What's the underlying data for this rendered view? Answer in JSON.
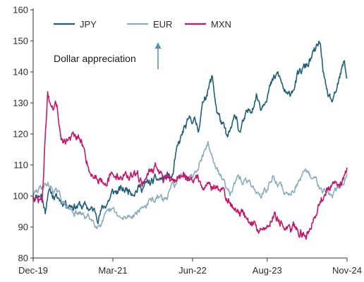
{
  "chart_data": {
    "type": "line",
    "title": "",
    "xlabel": "",
    "ylabel": "",
    "ylim": [
      80,
      160
    ],
    "yticks": [
      80,
      90,
      100,
      110,
      120,
      130,
      140,
      150,
      160
    ],
    "xticks": [
      {
        "label": "Dec-19",
        "date": "2019-12-31"
      },
      {
        "label": "Mar-21",
        "date": "2021-03-31"
      },
      {
        "label": "Jun-22",
        "date": "2022-06-30"
      },
      {
        "label": "Aug-23",
        "date": "2023-08-31"
      },
      {
        "label": "Nov-24",
        "date": "2024-11-30"
      }
    ],
    "grid": false,
    "legend": {
      "placement": "top-left"
    },
    "annotation": {
      "text": "Dollar appreciation",
      "arrow": "up"
    },
    "series": [
      {
        "name": "JPY",
        "color": "#1f5f7a",
        "points": [
          [
            "2019-12-31",
            100
          ],
          [
            "2020-02-15",
            101
          ],
          [
            "2020-03-09",
            95
          ],
          [
            "2020-03-24",
            102
          ],
          [
            "2020-05-15",
            99
          ],
          [
            "2020-07-15",
            98
          ],
          [
            "2020-09-15",
            97
          ],
          [
            "2020-11-15",
            96
          ],
          [
            "2021-01-05",
            94
          ],
          [
            "2021-02-15",
            97
          ],
          [
            "2021-03-31",
            101
          ],
          [
            "2021-06-15",
            102
          ],
          [
            "2021-09-15",
            103
          ],
          [
            "2021-12-15",
            105
          ],
          [
            "2022-01-31",
            106
          ],
          [
            "2022-03-07",
            106
          ],
          [
            "2022-03-28",
            113
          ],
          [
            "2022-05-10",
            121
          ],
          [
            "2022-06-30",
            125
          ],
          [
            "2022-08-01",
            122
          ],
          [
            "2022-09-07",
            132
          ],
          [
            "2022-10-21",
            138
          ],
          [
            "2022-11-15",
            128
          ],
          [
            "2023-01-16",
            118
          ],
          [
            "2023-03-08",
            126
          ],
          [
            "2023-03-24",
            121
          ],
          [
            "2023-05-30",
            128
          ],
          [
            "2023-06-30",
            133
          ],
          [
            "2023-07-28",
            129
          ],
          [
            "2023-08-31",
            134
          ],
          [
            "2023-11-01",
            139
          ],
          [
            "2023-12-28",
            131
          ],
          [
            "2024-02-15",
            138
          ],
          [
            "2024-04-26",
            143
          ],
          [
            "2024-06-28",
            149
          ],
          [
            "2024-08-05",
            132
          ],
          [
            "2024-09-16",
            130
          ],
          [
            "2024-10-31",
            140
          ],
          [
            "2024-11-15",
            143
          ],
          [
            "2024-11-29",
            138
          ]
        ]
      },
      {
        "name": "EUR",
        "color": "#8aadbd",
        "points": [
          [
            "2019-12-31",
            100
          ],
          [
            "2020-02-20",
            103
          ],
          [
            "2020-03-19",
            104
          ],
          [
            "2020-05-15",
            101
          ],
          [
            "2020-07-15",
            96
          ],
          [
            "2020-09-15",
            94
          ],
          [
            "2020-11-15",
            93
          ],
          [
            "2021-01-05",
            91
          ],
          [
            "2021-03-31",
            95
          ],
          [
            "2021-05-25",
            92
          ],
          [
            "2021-08-15",
            95
          ],
          [
            "2021-11-24",
            99
          ],
          [
            "2022-01-31",
            99
          ],
          [
            "2022-03-07",
            103
          ],
          [
            "2022-05-12",
            107
          ],
          [
            "2022-06-30",
            107
          ],
          [
            "2022-09-27",
            117
          ],
          [
            "2022-11-15",
            108
          ],
          [
            "2023-01-31",
            102
          ],
          [
            "2023-03-15",
            105
          ],
          [
            "2023-05-30",
            104
          ],
          [
            "2023-07-18",
            100
          ],
          [
            "2023-08-31",
            102
          ],
          [
            "2023-10-03",
            106
          ],
          [
            "2023-12-28",
            100
          ],
          [
            "2024-02-15",
            104
          ],
          [
            "2024-04-16",
            107
          ],
          [
            "2024-06-28",
            104
          ],
          [
            "2024-08-26",
            100
          ],
          [
            "2024-10-31",
            103
          ],
          [
            "2024-11-29",
            107
          ]
        ]
      },
      {
        "name": "MXN",
        "color": "#c4186c",
        "points": [
          [
            "2019-12-31",
            100
          ],
          [
            "2020-02-20",
            98
          ],
          [
            "2020-03-23",
            134
          ],
          [
            "2020-04-15",
            126
          ],
          [
            "2020-05-15",
            128
          ],
          [
            "2020-06-15",
            118
          ],
          [
            "2020-08-15",
            119
          ],
          [
            "2020-09-30",
            117
          ],
          [
            "2020-11-30",
            107
          ],
          [
            "2021-01-20",
            106
          ],
          [
            "2021-03-31",
            106
          ],
          [
            "2021-06-15",
            107
          ],
          [
            "2021-09-15",
            105
          ],
          [
            "2021-11-26",
            110
          ],
          [
            "2022-01-31",
            104
          ],
          [
            "2022-03-31",
            106
          ],
          [
            "2022-06-30",
            106
          ],
          [
            "2022-09-30",
            104
          ],
          [
            "2022-12-30",
            101
          ],
          [
            "2023-01-31",
            97
          ],
          [
            "2023-03-17",
            96
          ],
          [
            "2023-05-15",
            92
          ],
          [
            "2023-07-28",
            89
          ],
          [
            "2023-08-31",
            90
          ],
          [
            "2023-10-10",
            95
          ],
          [
            "2023-12-28",
            88
          ],
          [
            "2024-02-15",
            90
          ],
          [
            "2024-04-09",
            87
          ],
          [
            "2024-05-28",
            95
          ],
          [
            "2024-06-14",
            97
          ],
          [
            "2024-08-05",
            102
          ],
          [
            "2024-09-15",
            102
          ],
          [
            "2024-10-31",
            104
          ],
          [
            "2024-11-29",
            109
          ]
        ]
      }
    ]
  }
}
